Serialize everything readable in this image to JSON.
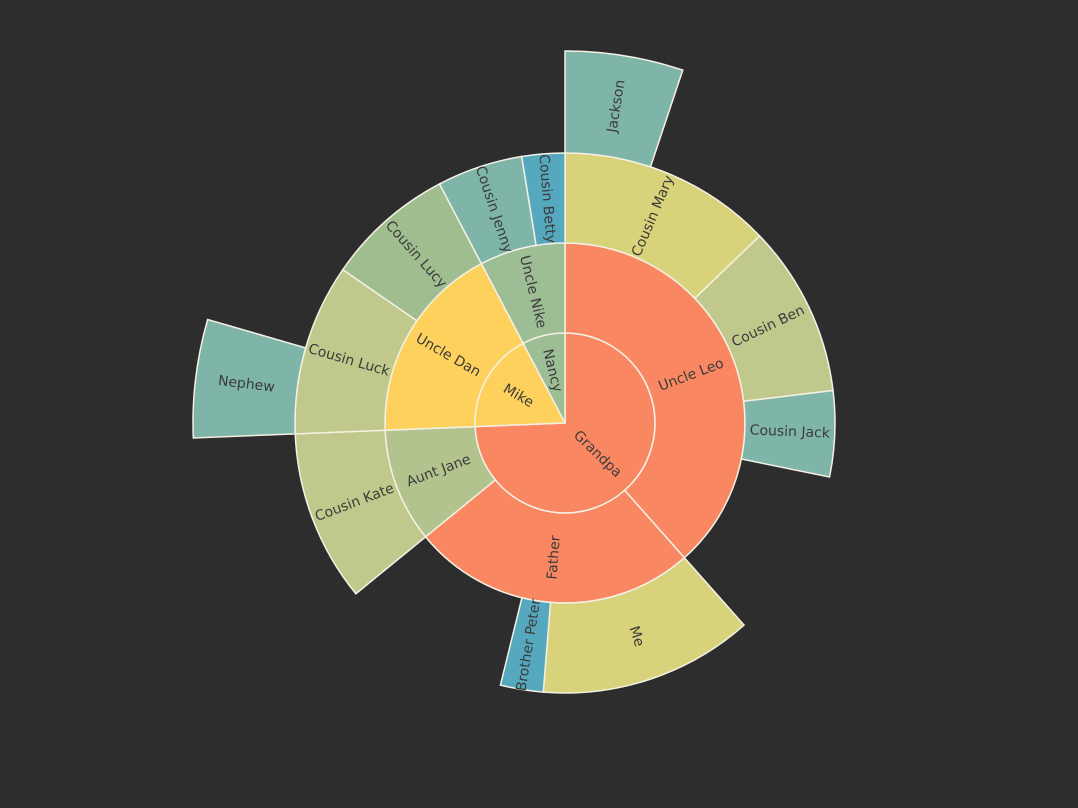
{
  "chart_data": {
    "type": "sunburst",
    "sort": "desc",
    "clockwise": true,
    "start": "top",
    "label_rotation": "radial",
    "data": [
      {
        "name": "Grandpa",
        "color": "#f98862",
        "children": [
          {
            "name": "Uncle Leo",
            "value": 15,
            "color": "#f98862",
            "children": [
              {
                "name": "Cousin Jack",
                "value": 2,
                "color": "#7fb4a8"
              },
              {
                "name": "Cousin Mary",
                "value": 5,
                "color": "#d8d27a",
                "children": [
                  {
                    "name": "Jackson",
                    "value": 2,
                    "color": "#7fb4a8"
                  }
                ]
              },
              {
                "name": "Cousin Ben",
                "value": 4,
                "color": "#c0c98b"
              }
            ]
          },
          {
            "name": "Aunt Jane",
            "color": "#b3c38e",
            "children": [
              {
                "name": "Cousin Kate",
                "value": 4,
                "color": "#c0c98b"
              }
            ]
          },
          {
            "name": "Father",
            "value": 10,
            "color": "#f98862",
            "children": [
              {
                "name": "Me",
                "value": 5,
                "color": "#d8d27a"
              },
              {
                "name": "Brother Peter",
                "value": 1,
                "color": "#55a8be"
              }
            ]
          }
        ]
      },
      {
        "name": "Mike",
        "color": "#fdd15c",
        "children": [
          {
            "name": "Uncle Dan",
            "color": "#fdd15c",
            "children": [
              {
                "name": "Cousin Lucy",
                "value": 3,
                "color": "#a0bd8f"
              },
              {
                "name": "Cousin Luck",
                "value": 4,
                "color": "#c0c98b",
                "children": [
                  {
                    "name": "Nephew",
                    "value": 2,
                    "color": "#7fb4a8"
                  }
                ]
              }
            ]
          }
        ]
      },
      {
        "name": "Nancy",
        "color": "#9dbd95",
        "children": [
          {
            "name": "Uncle Nike",
            "color": "#9dbd95",
            "children": [
              {
                "name": "Cousin Betty",
                "value": 1,
                "color": "#55a8be"
              },
              {
                "name": "Cousin Jenny",
                "value": 2,
                "color": "#7fb4a8"
              }
            ]
          }
        ]
      }
    ],
    "label_color": "#3b3b3b",
    "border_color": "#f4f1e4"
  }
}
